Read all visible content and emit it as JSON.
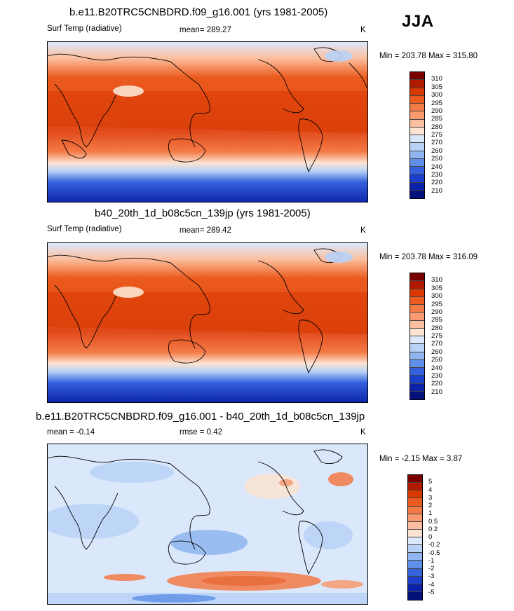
{
  "season": "JJA",
  "panels": [
    {
      "title": "b.e11.B20TRC5CNBDRD.f09_g16.001 (yrs 1981-2005)",
      "left_label": "Surf Temp (radiative)",
      "mean_label": "mean= 289.27",
      "units": "K",
      "minmax": "Min = 203.78 Max = 315.80",
      "colorbar": {
        "labels": [
          "310",
          "305",
          "300",
          "295",
          "290",
          "285",
          "280",
          "275",
          "270",
          "260",
          "250",
          "240",
          "230",
          "220",
          "210"
        ],
        "colors": [
          "#7a0000",
          "#b21a00",
          "#d93800",
          "#eb5a1e",
          "#f47a46",
          "#f99a70",
          "#fcbf9f",
          "#fde4d2",
          "#dbe8fb",
          "#b8d2f7",
          "#8fb6f0",
          "#5f8fe8",
          "#3561dd",
          "#1b3fca",
          "#0c22a8",
          "#04117a"
        ]
      }
    },
    {
      "title": "b40_20th_1d_b08c5cn_139jp (yrs 1981-2005)",
      "left_label": "Surf Temp (radiative)",
      "mean_label": "mean= 289.42",
      "units": "K",
      "minmax": "Min = 203.78 Max = 316.09",
      "colorbar": {
        "labels": [
          "310",
          "305",
          "300",
          "295",
          "290",
          "285",
          "280",
          "275",
          "270",
          "260",
          "250",
          "240",
          "230",
          "220",
          "210"
        ],
        "colors": [
          "#7a0000",
          "#b21a00",
          "#d93800",
          "#eb5a1e",
          "#f47a46",
          "#f99a70",
          "#fcbf9f",
          "#fde4d2",
          "#dbe8fb",
          "#b8d2f7",
          "#8fb6f0",
          "#5f8fe8",
          "#3561dd",
          "#1b3fca",
          "#0c22a8",
          "#04117a"
        ]
      }
    },
    {
      "title": "b.e11.B20TRC5CNBDRD.f09_g16.001 - b40_20th_1d_b08c5cn_139jp",
      "left_label": "mean =  -0.14",
      "mean_label": "rmse =   0.42",
      "units": "K",
      "minmax": "Min =  -2.15 Max =   3.87",
      "colorbar": {
        "labels": [
          "5",
          "4",
          "3",
          "2",
          "1",
          "0.5",
          "0.2",
          "0",
          "-0.2",
          "-0.5",
          "-1",
          "-2",
          "-3",
          "-4",
          "-5"
        ],
        "colors": [
          "#7a0000",
          "#b21a00",
          "#d93800",
          "#eb5a1e",
          "#f47a46",
          "#f99a70",
          "#fcbf9f",
          "#fde4d2",
          "#dbe8fb",
          "#b8d2f7",
          "#8fb6f0",
          "#5f8fe8",
          "#3561dd",
          "#1b3fca",
          "#0c22a8",
          "#04117a"
        ]
      }
    }
  ]
}
